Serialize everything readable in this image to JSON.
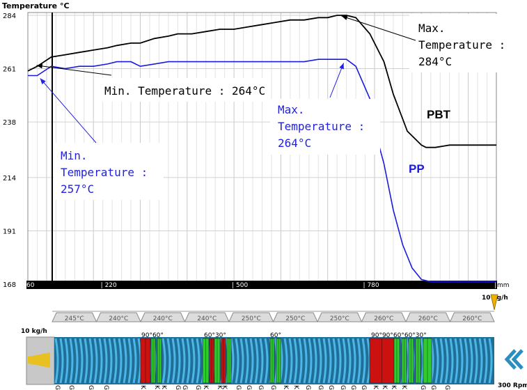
{
  "chart_data": {
    "type": "line",
    "ylabel": "Temperature °C",
    "x_unit": "mm",
    "x_ticks": [
      "60",
      "220",
      "500",
      "780",
      "1060"
    ],
    "y_ticks": [
      168,
      191,
      214,
      238,
      261,
      284
    ],
    "xlim": [
      60,
      1060
    ],
    "ylim": [
      168,
      284
    ],
    "grid": true,
    "series": [
      {
        "name": "PBT",
        "color": "#000000",
        "x": [
          60,
          80,
          110,
          140,
          170,
          200,
          230,
          250,
          280,
          300,
          330,
          360,
          380,
          410,
          440,
          470,
          500,
          530,
          560,
          590,
          620,
          650,
          680,
          700,
          720,
          740,
          760,
          790,
          800,
          820,
          840,
          870,
          900,
          910,
          930,
          960,
          1000,
          1060
        ],
        "y": [
          260,
          262,
          266,
          267,
          268,
          269,
          270,
          271,
          272,
          272,
          274,
          275,
          276,
          276,
          277,
          278,
          278,
          279,
          280,
          281,
          282,
          282,
          283,
          283,
          284,
          284,
          283,
          276,
          272,
          264,
          250,
          234,
          228,
          227,
          227,
          228,
          228,
          228
        ]
      },
      {
        "name": "PP",
        "color": "#1a1adc",
        "x": [
          60,
          80,
          110,
          140,
          170,
          200,
          230,
          250,
          280,
          300,
          330,
          360,
          380,
          410,
          440,
          470,
          500,
          530,
          560,
          590,
          620,
          650,
          680,
          700,
          720,
          740,
          760,
          790,
          800,
          820,
          840,
          860,
          880,
          900,
          920,
          960,
          1000,
          1060
        ],
        "y": [
          258,
          258,
          262,
          261,
          262,
          262,
          263,
          264,
          264,
          262,
          263,
          264,
          264,
          264,
          264,
          264,
          264,
          264,
          264,
          264,
          264,
          264,
          265,
          265,
          265,
          265,
          262,
          248,
          235,
          220,
          200,
          185,
          175,
          170,
          169,
          169,
          169,
          169
        ]
      }
    ],
    "annotations": [
      {
        "id": "pbt_min",
        "text_lines": [
          "Min. Temperature : 264°C"
        ],
        "color": "#000000",
        "x": 80,
        "y": 263
      },
      {
        "id": "pp_min",
        "text_lines": [
          "Min.",
          "Temperature :",
          "257°C"
        ],
        "color": "#2222dd",
        "x": 110,
        "y": 258
      },
      {
        "id": "pp_max",
        "text_lines": [
          "Max.",
          "Temperature :",
          "264°C"
        ],
        "color": "#2222dd",
        "x": 740,
        "y": 264
      },
      {
        "id": "pbt_max",
        "text_lines": [
          "Max.",
          "Temperature :",
          "284°C"
        ],
        "color": "#000000",
        "x": 740,
        "y": 284
      }
    ],
    "series_labels": [
      {
        "text": "PBT",
        "color": "#000000"
      },
      {
        "text": "PP",
        "color": "#1a1adc"
      }
    ]
  },
  "extruder": {
    "feed_label": "10 kg/h",
    "feed_marker": "10 kg/h",
    "rpm_label": "300 Rpm",
    "zones": [
      "245°C",
      "240°C",
      "240°C",
      "240°C",
      "250°C",
      "250°C",
      "250°C",
      "260°C",
      "260°C",
      "260°C"
    ],
    "angle_labels": [
      {
        "text": "90°60°",
        "red": false
      },
      {
        "text": "60°30°",
        "red": false
      },
      {
        "text": "60°",
        "red": false
      },
      {
        "text": "90°90°60°60°30°",
        "red": false
      }
    ],
    "element_codes": [
      "G",
      "G",
      "G",
      "G",
      "K",
      "K",
      "K",
      "G",
      "G",
      "G",
      "K",
      "K",
      "K",
      "G",
      "G",
      "G",
      "G",
      "K",
      "K",
      "G",
      "G",
      "G",
      "G",
      "G",
      "G",
      "K",
      "K",
      "K",
      "K",
      "G",
      "G",
      "G"
    ]
  },
  "colors": {
    "accent_blue": "#1a1adc",
    "plot_bg": "#ffffff",
    "screw": "#2a8fc0",
    "kneading_red": "#cc1111",
    "kneading_green": "#2ecc2e"
  }
}
